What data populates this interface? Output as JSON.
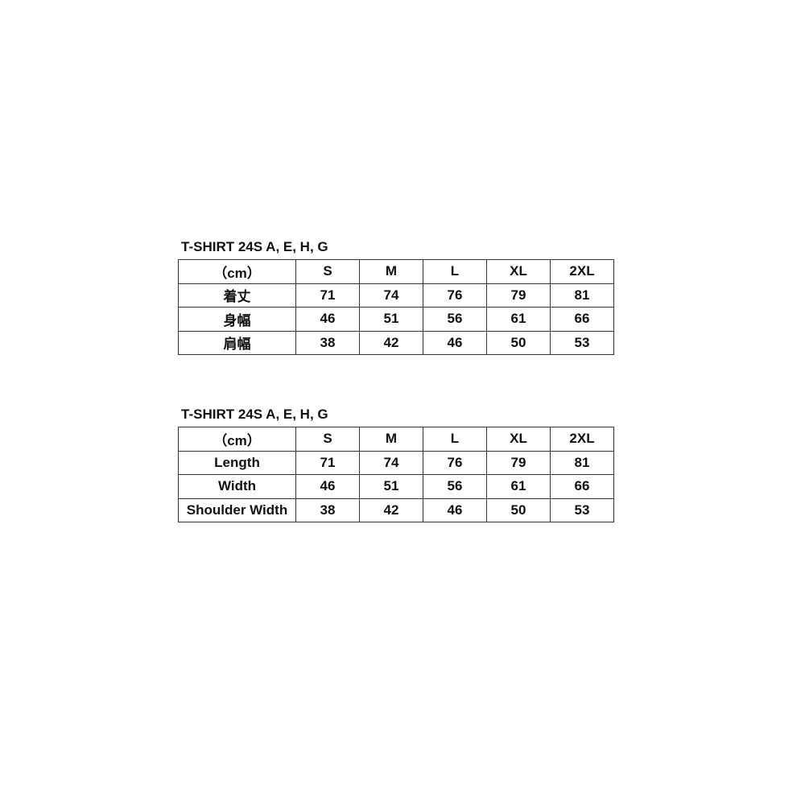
{
  "tables": [
    {
      "title": "T-SHIRT 24S A, E, H, G",
      "header": [
        "（cm）",
        "S",
        "M",
        "L",
        "XL",
        "2XL"
      ],
      "rows": [
        [
          "着丈",
          "71",
          "74",
          "76",
          "79",
          "81"
        ],
        [
          "身幅",
          "46",
          "51",
          "56",
          "61",
          "66"
        ],
        [
          "肩幅",
          "38",
          "42",
          "46",
          "50",
          "53"
        ]
      ]
    },
    {
      "title": "T-SHIRT 24S A, E, H, G",
      "header": [
        "（cm）",
        "S",
        "M",
        "L",
        "XL",
        "2XL"
      ],
      "rows": [
        [
          "Length",
          "71",
          "74",
          "76",
          "79",
          "81"
        ],
        [
          "Width",
          "46",
          "51",
          "56",
          "61",
          "66"
        ],
        [
          "Shoulder Width",
          "38",
          "42",
          "46",
          "50",
          "53"
        ]
      ]
    }
  ]
}
